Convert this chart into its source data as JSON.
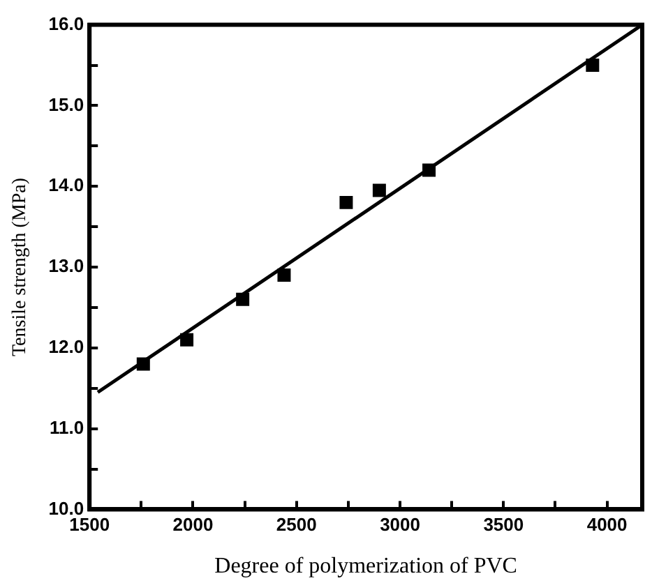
{
  "chart_data": {
    "type": "scatter",
    "xlabel": "Degree of polymerization of PVC",
    "ylabel": "Tensile strength (MPa)",
    "marker": "square",
    "grid": false,
    "legend": false,
    "xlim": [
      1500,
      4170
    ],
    "ylim": [
      10,
      16
    ],
    "xticks": [
      1500,
      {
        "value": 1750,
        "label": null
      },
      2000,
      {
        "value": 2250,
        "label": null
      },
      2500,
      {
        "value": 2750,
        "label": null
      },
      3000,
      {
        "value": 3250,
        "label": null
      },
      3500,
      {
        "value": 3750,
        "label": null
      },
      4000
    ],
    "yticks": [
      {
        "value": 10,
        "label": "10.0"
      },
      {
        "value": 10.5,
        "label": null
      },
      {
        "value": 11,
        "label": "11.0"
      },
      {
        "value": 11.5,
        "label": null
      },
      {
        "value": 12,
        "label": "12.0"
      },
      {
        "value": 12.5,
        "label": null
      },
      {
        "value": 13,
        "label": "13.0"
      },
      {
        "value": 13.5,
        "label": null
      },
      {
        "value": 14,
        "label": "14.0"
      },
      {
        "value": 14.5,
        "label": null
      },
      {
        "value": 15,
        "label": "15.0"
      },
      {
        "value": 15.5,
        "label": null
      },
      {
        "value": 16,
        "label": "16.0"
      }
    ],
    "series": [
      {
        "color": "#000000",
        "x": [
          1760,
          1970,
          2240,
          2440,
          2740,
          2900,
          3140,
          3930
        ],
        "values": [
          11.8,
          12.1,
          12.6,
          12.9,
          13.8,
          13.95,
          14.2,
          15.5
        ]
      },
      {
        "type": "line",
        "marker": "none",
        "color": "#000000",
        "x": [
          1540,
          4170
        ],
        "values": [
          11.45,
          16.0
        ]
      }
    ]
  }
}
